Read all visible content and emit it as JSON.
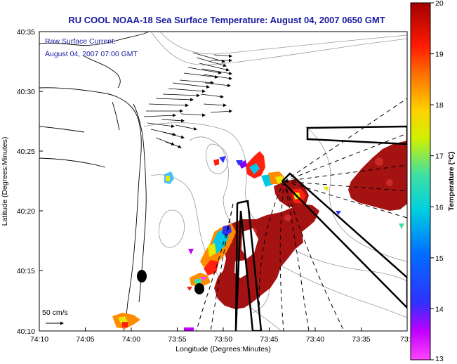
{
  "title": "RU COOL  NOAA-18  Sea Surface Temperature:  August 04, 2007 0650 GMT",
  "current_note": {
    "line1": "Raw Surface Current:",
    "line2": "August 04, 2007 07:00 GMT"
  },
  "scale_label": "50 cm/s",
  "axes": {
    "xlabel": "Longitude (Degrees:Minutes)",
    "ylabel": "Latitude (Degrees:Minutes)",
    "x_ticks": [
      "74:10",
      "74:05",
      "74:00",
      "73:55",
      "73:50",
      "73:45",
      "73:40",
      "73:35",
      "73:3"
    ],
    "y_ticks": [
      "40:35",
      "40:30",
      "40:25",
      "40:20",
      "40:15",
      "40:10"
    ]
  },
  "colorbar": {
    "label": "Temperature (°C)",
    "min": 13,
    "max": 20,
    "ticks": [
      "20",
      "19",
      "18",
      "17",
      "16",
      "15",
      "14",
      "13"
    ]
  },
  "colors": {
    "title": "#1a1aa0",
    "sst_warm": "#a01010",
    "land_contour": "#000000",
    "depth_contour": "#999999"
  }
}
